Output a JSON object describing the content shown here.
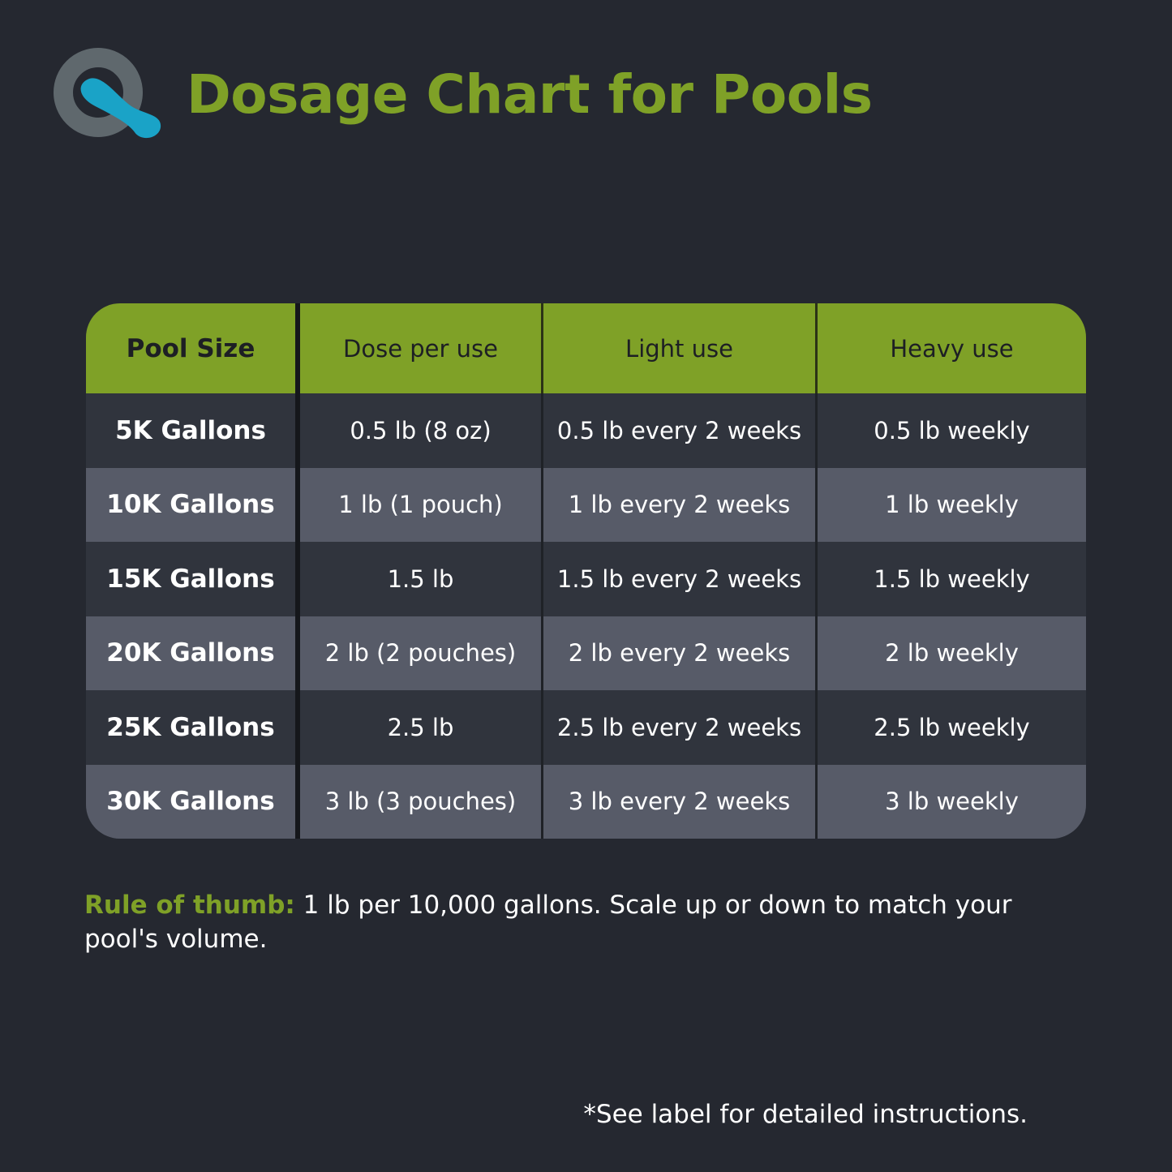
{
  "header": {
    "logo_icon": "q-logo-icon",
    "title": "Dosage Chart for Pools"
  },
  "colors": {
    "background": "#252830",
    "accent_green": "#7fa127",
    "row_dark": "#30343d",
    "row_light": "#575b68",
    "logo_gray": "#5f686d",
    "logo_blue": "#1aa3c7"
  },
  "table": {
    "headers": [
      "Pool Size",
      "Dose per use",
      "Light use",
      "Heavy use"
    ],
    "rows": [
      [
        "5K Gallons",
        "0.5 lb (8 oz)",
        "0.5 lb every 2 weeks",
        "0.5 lb weekly"
      ],
      [
        "10K Gallons",
        "1 lb (1 pouch)",
        "1 lb every 2 weeks",
        "1 lb weekly"
      ],
      [
        "15K Gallons",
        "1.5 lb",
        "1.5 lb every 2 weeks",
        "1.5 lb weekly"
      ],
      [
        "20K Gallons",
        "2 lb (2 pouches)",
        "2 lb every 2 weeks",
        "2 lb weekly"
      ],
      [
        "25K Gallons",
        "2.5 lb",
        "2.5 lb every 2 weeks",
        "2.5 lb weekly"
      ],
      [
        "30K Gallons",
        "3 lb (3 pouches)",
        "3 lb every 2 weeks",
        "3 lb weekly"
      ]
    ]
  },
  "rule": {
    "lead": "Rule of thumb:",
    "text": " 1 lb per 10,000 gallons. Scale up or down to match your pool's volume."
  },
  "footnote": "*See label for detailed instructions."
}
